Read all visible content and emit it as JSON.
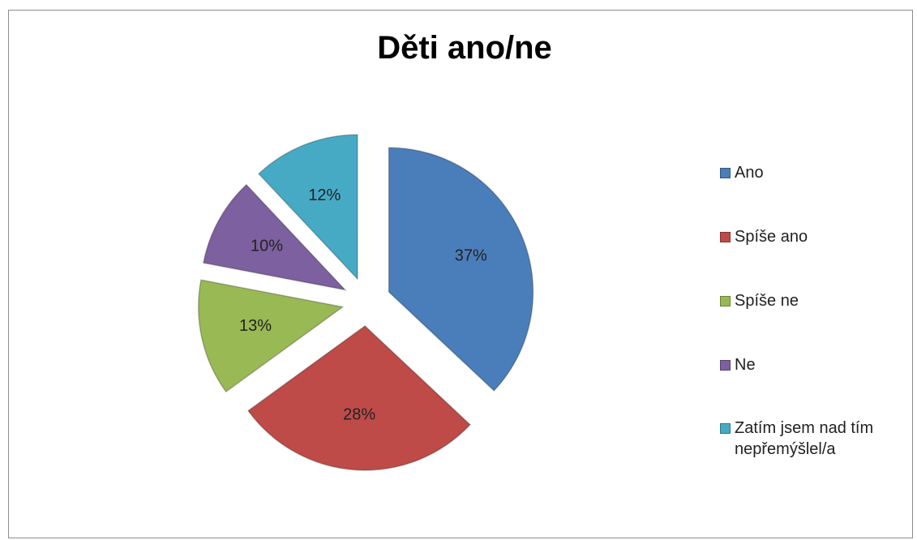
{
  "chart_data": {
    "type": "pie",
    "title": "Děti ano/ne",
    "categories": [
      "Ano",
      "Spíše ano",
      "Spíše ne",
      "Ne",
      "Zatím jsem nad tím nepřemýšlel/a"
    ],
    "values": [
      37,
      28,
      13,
      10,
      12
    ],
    "value_labels": [
      "37%",
      "28%",
      "13%",
      "10%",
      "12%"
    ],
    "colors": [
      "#4a7ebb",
      "#be4b48",
      "#98b954",
      "#7d60a0",
      "#46aac5"
    ],
    "legend": "right"
  }
}
